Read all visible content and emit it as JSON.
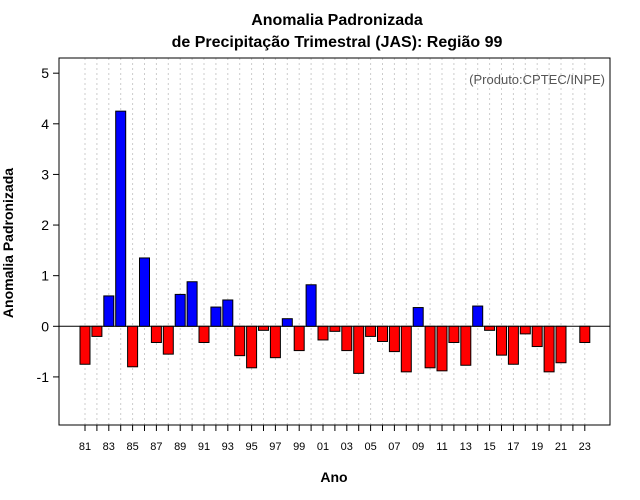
{
  "chart_data": {
    "type": "bar",
    "title": "Anomalia Padronizada",
    "subtitle": "de Precipitação Trimestral (JAS): Região 99",
    "xlabel": "Ano",
    "ylabel": "Anomalia Padronizada",
    "annotation": "(Produto:CPTEC/INPE)",
    "ylim": [
      -1.95,
      5.3
    ],
    "yticks": [
      -1,
      0,
      1,
      2,
      3,
      4,
      5
    ],
    "ytick_labels": [
      "-1",
      "0",
      "1",
      "2",
      "3",
      "4",
      "5"
    ],
    "xtick_labels": [
      "81",
      "83",
      "85",
      "87",
      "89",
      "91",
      "93",
      "95",
      "97",
      "99",
      "01",
      "03",
      "05",
      "07",
      "09",
      "11",
      "13",
      "15",
      "17",
      "19",
      "21",
      "23"
    ],
    "grid": true,
    "positive_color": "#0000ff",
    "negative_color": "#ff0000",
    "years": [
      1981,
      1982,
      1983,
      1984,
      1985,
      1986,
      1987,
      1988,
      1989,
      1990,
      1991,
      1992,
      1993,
      1994,
      1995,
      1996,
      1997,
      1998,
      1999,
      2000,
      2001,
      2002,
      2003,
      2004,
      2005,
      2006,
      2007,
      2008,
      2009,
      2010,
      2011,
      2012,
      2013,
      2014,
      2015,
      2016,
      2017,
      2018,
      2019,
      2020,
      2021,
      2022,
      2023
    ],
    "values": [
      -0.75,
      -0.2,
      0.6,
      4.25,
      -0.8,
      1.35,
      -0.32,
      -0.55,
      0.63,
      0.88,
      -0.32,
      0.38,
      0.52,
      -0.58,
      -0.82,
      -0.08,
      -0.62,
      0.15,
      -0.48,
      0.82,
      -0.27,
      -0.1,
      -0.48,
      -0.93,
      -0.2,
      -0.3,
      -0.5,
      -0.9,
      0.37,
      -0.82,
      -0.88,
      -0.32,
      -0.77,
      0.4,
      -0.08,
      -0.57,
      -0.75,
      -0.15,
      -0.4,
      -0.9,
      -0.72,
      0.0,
      -0.32
    ]
  }
}
